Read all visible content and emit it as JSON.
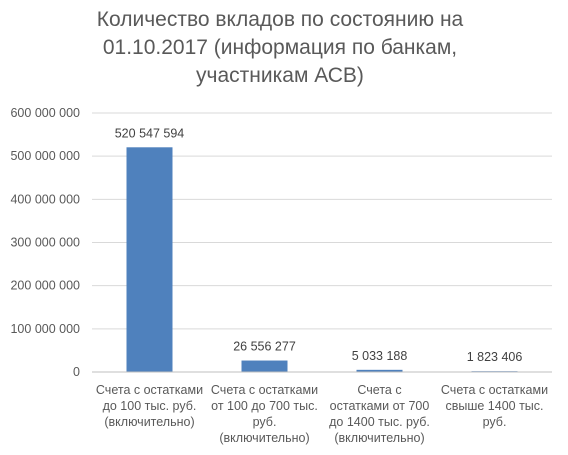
{
  "chart_data": {
    "type": "bar",
    "title": "Количество вкладов по состоянию на\n01.10.2017 (информация по банкам,\nучастникам АСВ)",
    "xlabel": "",
    "ylabel": "",
    "categories": [
      "Счета с остатками\nдо 100 тыс. руб.\n(включительно)",
      "Счета с остатками\nот 100 до 700 тыс.\nруб.\n(включительно)",
      "Счета с\nостатками от 700\nдо 1400 тыс. руб.\n(включительно)",
      "Счета с остатками\nсвыше 1400 тыс.\nруб."
    ],
    "values": [
      520547594,
      26556277,
      5033188,
      1823406
    ],
    "value_labels": [
      "520 547 594",
      "26 556 277",
      "5 033 188",
      "1 823 406"
    ],
    "ylim": [
      0,
      600000000
    ],
    "yticks": [
      0,
      100000000,
      200000000,
      300000000,
      400000000,
      500000000,
      600000000
    ],
    "ytick_labels": [
      "0",
      "100 000 000",
      "200 000 000",
      "300 000 000",
      "400 000 000",
      "500 000 000",
      "600 000 000"
    ],
    "grid": true,
    "legend": "none",
    "bar_color": "#4f81bd",
    "grid_color": "#d9d9d9"
  }
}
